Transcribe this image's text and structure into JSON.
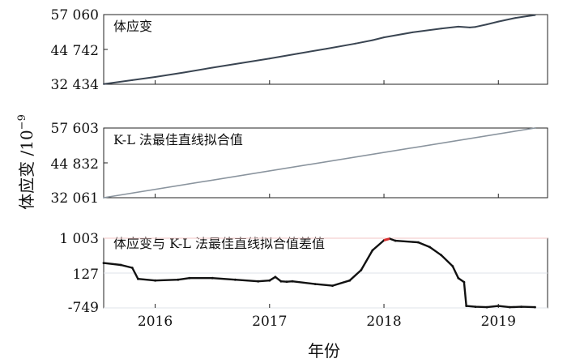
{
  "chart_data": [
    {
      "type": "line",
      "annotation": "体应变",
      "yticks": [
        "57 060",
        "44 742",
        "32 434"
      ],
      "ylim": [
        32434,
        57060
      ],
      "color": "#3a4552",
      "series": [
        {
          "x": [
            2015.55,
            2015.8,
            2016.0,
            2016.25,
            2016.5,
            2016.75,
            2017.0,
            2017.25,
            2017.5,
            2017.75,
            2017.9,
            2018.0,
            2018.25,
            2018.5,
            2018.65,
            2018.75,
            2018.8,
            2018.9,
            2019.0,
            2019.15,
            2019.25,
            2019.32
          ],
          "y": [
            32500,
            33900,
            35000,
            36600,
            38300,
            39900,
            41500,
            43300,
            45000,
            46800,
            48000,
            49000,
            50800,
            52100,
            52800,
            52500,
            52700,
            53600,
            54600,
            55900,
            56500,
            56900
          ]
        }
      ]
    },
    {
      "type": "line",
      "annotation": "K-L 法最佳直线拟合值",
      "yticks": [
        "57 603",
        "44 832",
        "32 061"
      ],
      "ylim": [
        32061,
        57603
      ],
      "color": "#8a949e",
      "series": [
        {
          "x": [
            2015.55,
            2019.32
          ],
          "y": [
            32061,
            57603
          ]
        }
      ]
    },
    {
      "type": "line",
      "annotation": "体应变与 K-L 法最佳直线拟合值差值",
      "yticks": [
        "1 003",
        "127",
        "-749"
      ],
      "ylim": [
        -749,
        1003
      ],
      "color": "#111111",
      "highlight_color": "#d9302f",
      "series": [
        {
          "x": [
            2015.55,
            2015.7,
            2015.8,
            2015.85,
            2016.0,
            2016.2,
            2016.3,
            2016.5,
            2016.7,
            2016.9,
            2017.0,
            2017.05,
            2017.1,
            2017.15,
            2017.2,
            2017.4,
            2017.55,
            2017.7,
            2017.8,
            2017.9,
            2018.0,
            2018.05,
            2018.1,
            2018.3,
            2018.4,
            2018.5,
            2018.6,
            2018.65,
            2018.7,
            2018.72,
            2018.8,
            2018.9,
            2019.0,
            2019.1,
            2019.2,
            2019.32
          ],
          "y": [
            380,
            330,
            260,
            -20,
            -60,
            -40,
            0,
            0,
            -40,
            -80,
            -60,
            30,
            -80,
            -90,
            -80,
            -150,
            -190,
            -60,
            200,
            700,
            950,
            990,
            940,
            900,
            780,
            580,
            300,
            0,
            -100,
            -700,
            -720,
            -730,
            -700,
            -730,
            -720,
            -730
          ]
        }
      ]
    }
  ],
  "x_axis": {
    "ticks": [
      "2016",
      "2017",
      "2018",
      "2019"
    ],
    "tick_values": [
      2016,
      2017,
      2018,
      2019
    ],
    "xlim": [
      2015.55,
      2019.43
    ],
    "label": "年份"
  },
  "y_axis": {
    "label": "体应变 /10",
    "label_exponent": "−9"
  }
}
